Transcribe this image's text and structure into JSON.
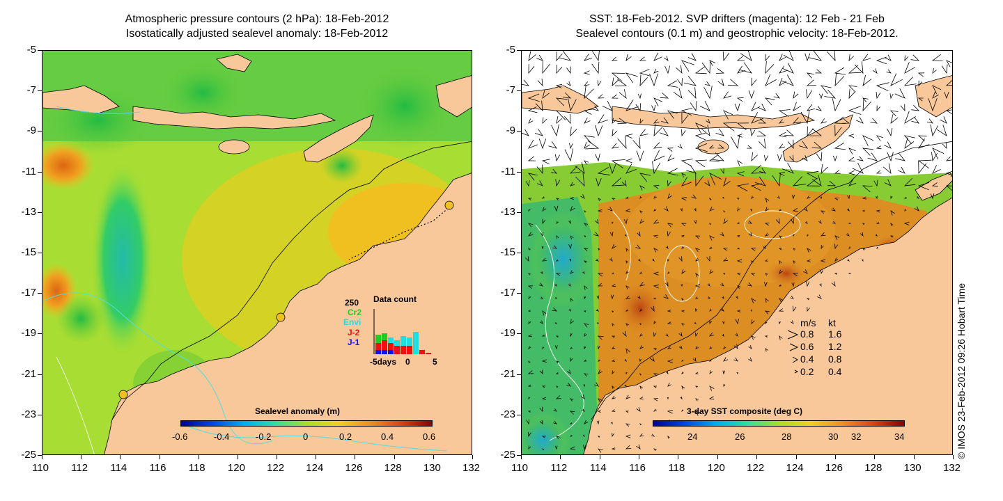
{
  "left_panel": {
    "title_line1": "Atmospheric pressure contours (2 hPa): 18-Feb-2012",
    "title_line2": "Isostatically adjusted sealevel anomaly: 18-Feb-2012",
    "colorbar_title": "Sealevel anomaly (m)",
    "colorbar_ticks": [
      "-0.6",
      "-0.4",
      "-0.2",
      "0",
      "0.2",
      "0.4",
      "0.6"
    ],
    "data_count": {
      "title": "Data count",
      "max_label": "250",
      "missions": [
        {
          "label": "Cr2",
          "color": "#22cc22"
        },
        {
          "label": "Envi",
          "color": "#22dddd"
        },
        {
          "label": "J-2",
          "color": "#ee1111"
        },
        {
          "label": "J-1",
          "color": "#1111ee"
        }
      ],
      "xlabel": "-5days",
      "xticks": [
        "0",
        "5"
      ]
    }
  },
  "right_panel": {
    "title_line1": "SST: 18-Feb-2012. SVP drifters (magenta): 12 Feb - 21 Feb",
    "title_line2": "Sealevel contours (0.1 m) and geostrophic velocity: 18-Feb-2012.",
    "colorbar_title": "3-day SST composite (deg C)",
    "colorbar_ticks": [
      "24",
      "26",
      "28",
      "30",
      "32",
      "34"
    ],
    "velocity_legend": {
      "header": [
        "m/s",
        "kt"
      ],
      "rows": [
        [
          "0.8",
          "1.6"
        ],
        [
          "0.6",
          "1.2"
        ],
        [
          "0.4",
          "0.8"
        ],
        [
          "0.2",
          "0.4"
        ]
      ]
    }
  },
  "axes": {
    "xticks": [
      "110",
      "112",
      "114",
      "116",
      "118",
      "120",
      "122",
      "124",
      "126",
      "128",
      "130",
      "132"
    ],
    "yticks": [
      "-5",
      "-7",
      "-9",
      "-11",
      "-13",
      "-15",
      "-17",
      "-19",
      "-21",
      "-23",
      "-25"
    ]
  },
  "credit": "© IMOS 23-Feb-2012 09:26 Hobart Time",
  "colors": {
    "land": "#f8c89a",
    "bathymetry_contour": "#55dddd"
  }
}
